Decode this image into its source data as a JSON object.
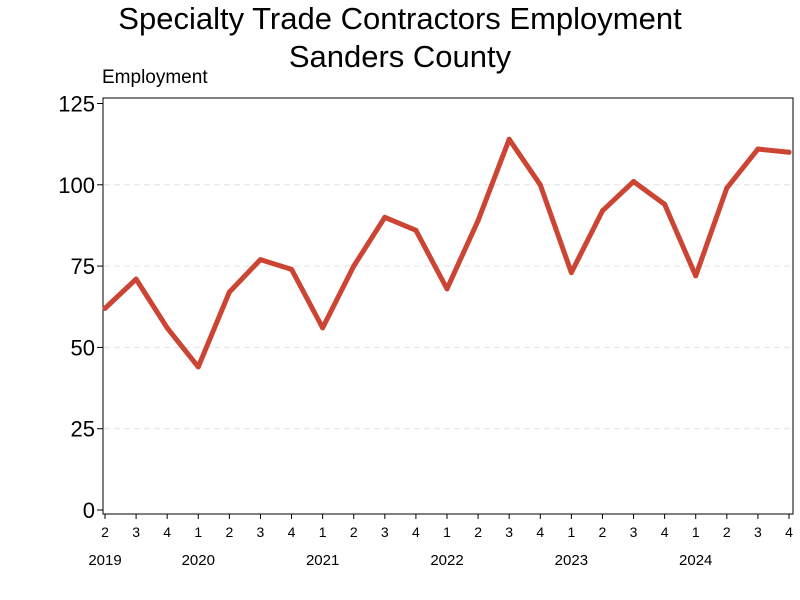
{
  "chart_data": {
    "type": "line",
    "title": "Specialty Trade Contractors Employment",
    "subtitle": "Sanders County",
    "ylabel": "Employment",
    "xlabel": "",
    "ylim": [
      0,
      125
    ],
    "yticks": [
      0,
      25,
      50,
      75,
      100,
      125
    ],
    "grid": true,
    "line_color": "#cc4433",
    "quarters": [
      "2",
      "3",
      "4",
      "1",
      "2",
      "3",
      "4",
      "1",
      "2",
      "3",
      "4",
      "1",
      "2",
      "3",
      "4",
      "1",
      "2",
      "3",
      "4",
      "1",
      "2",
      "3",
      "4"
    ],
    "years": [
      {
        "label": "2019",
        "index": 0
      },
      {
        "label": "2020",
        "index": 3
      },
      {
        "label": "2021",
        "index": 7
      },
      {
        "label": "2022",
        "index": 11
      },
      {
        "label": "2023",
        "index": 15
      },
      {
        "label": "2024",
        "index": 19
      }
    ],
    "series": [
      {
        "values": [
          62,
          71,
          56,
          44,
          67,
          77,
          74,
          56,
          75,
          90,
          86,
          68,
          89,
          114,
          100,
          73,
          92,
          101,
          94,
          72,
          99,
          111,
          110
        ]
      }
    ]
  }
}
